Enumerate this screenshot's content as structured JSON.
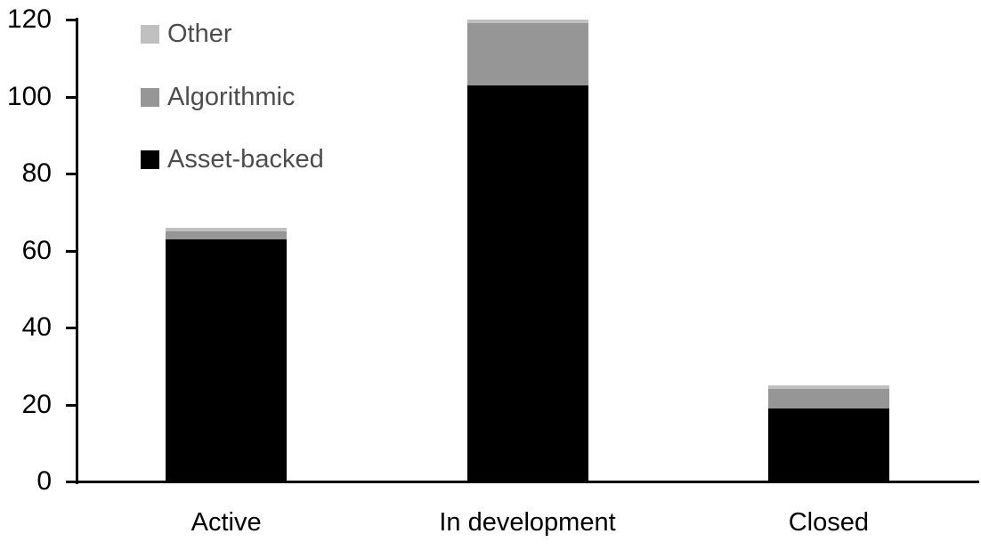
{
  "chart_data": {
    "type": "bar",
    "stacked": true,
    "title": "",
    "xlabel": "",
    "ylabel": "",
    "categories": [
      "Active",
      "In development",
      "Closed"
    ],
    "series": [
      {
        "name": "Asset-backed",
        "color": "#000000",
        "values": [
          63,
          103,
          19
        ]
      },
      {
        "name": "Algorithmic",
        "color": "#969696",
        "values": [
          2,
          16,
          5
        ]
      },
      {
        "name": "Other",
        "color": "#c0c0c0",
        "values": [
          1,
          1,
          1
        ]
      }
    ],
    "ylim": [
      0,
      120
    ],
    "yticks": [
      0,
      20,
      40,
      60,
      80,
      100,
      120
    ],
    "grid": false,
    "legend": {
      "position": "top-left",
      "entries": [
        "Other",
        "Algorithmic",
        "Asset-backed"
      ]
    }
  },
  "colors": {
    "background": "#ffffff",
    "axis": "#000000",
    "tick_label": "#000000",
    "legend_text": "#4d4d4d"
  }
}
